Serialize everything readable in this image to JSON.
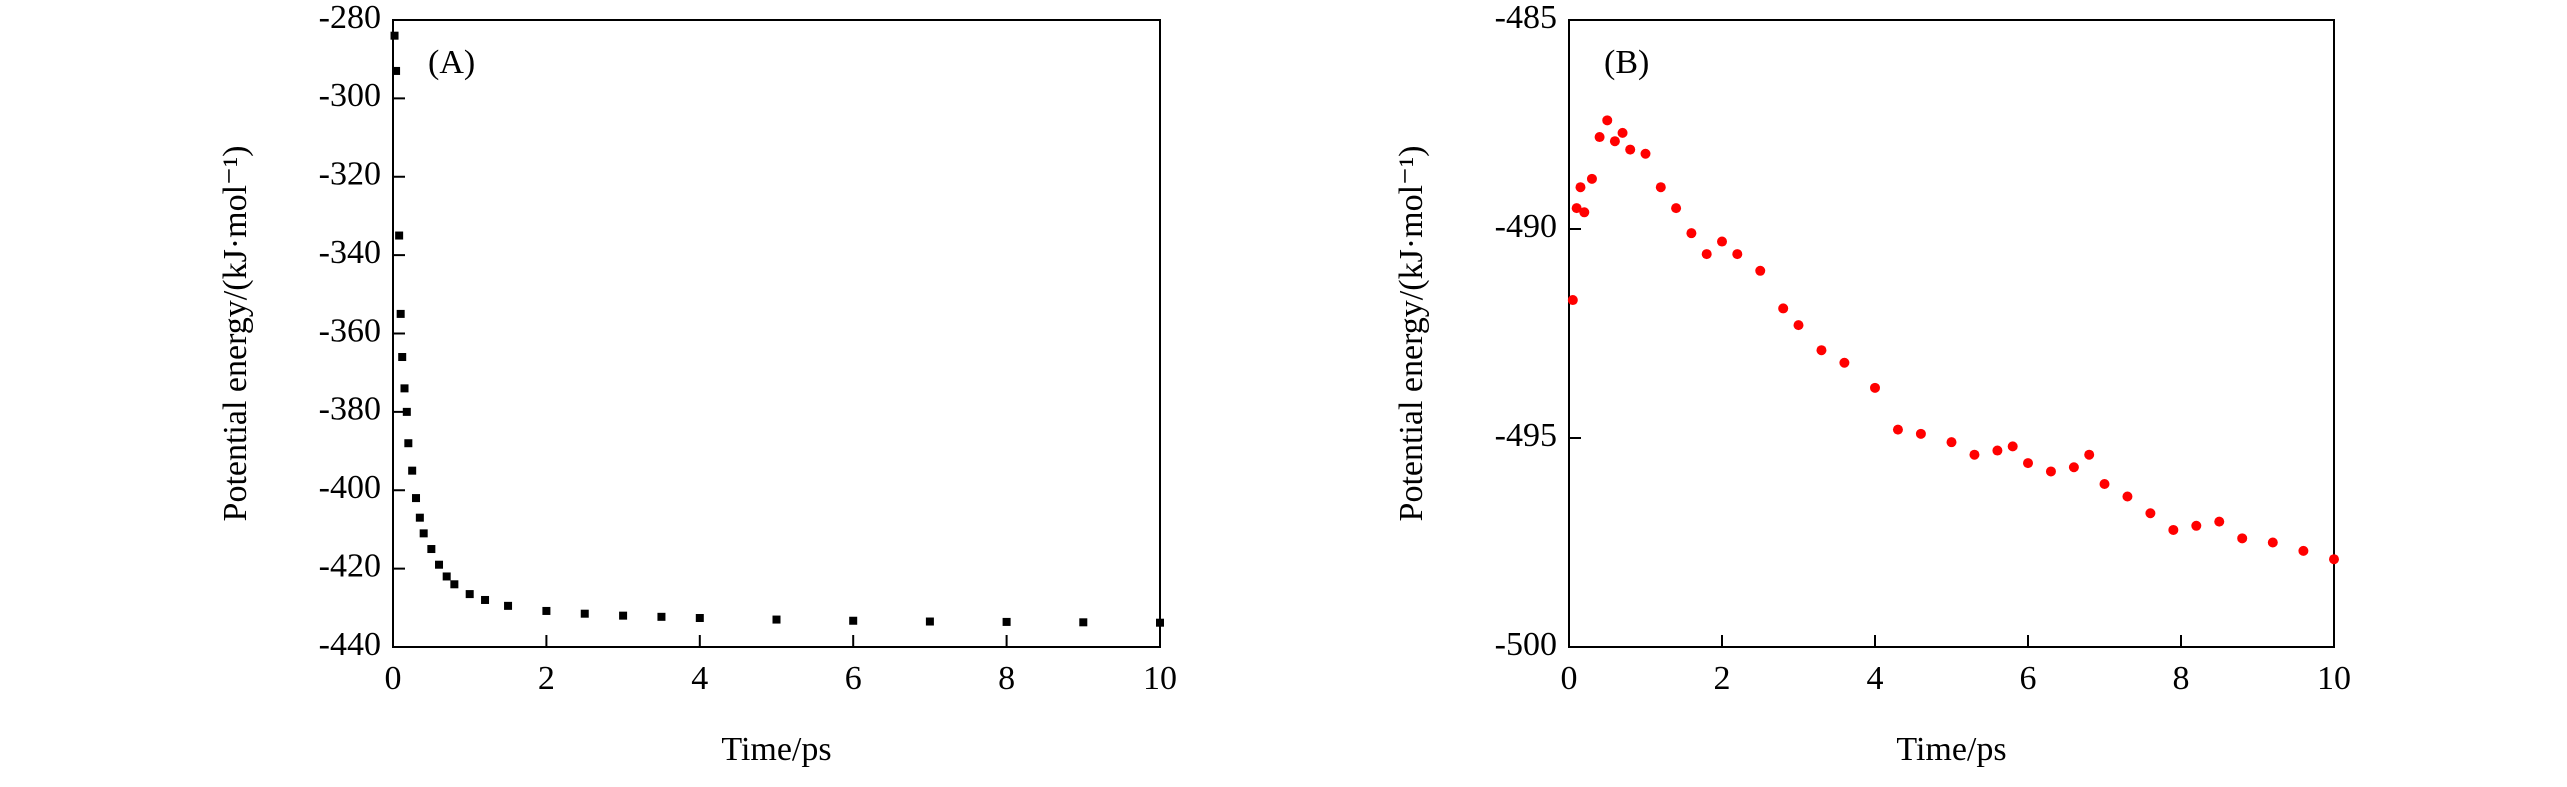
{
  "chart_data": [
    {
      "type": "scatter",
      "annotation": "(A)",
      "x_label": "Time/ps",
      "y_label": "Potential energy/(kJ·mol⁻¹)",
      "color": "#000000",
      "xlim": [
        0,
        10
      ],
      "xticks": [
        0,
        2,
        4,
        6,
        8,
        10
      ],
      "ylim": [
        -440,
        -280
      ],
      "yticks": [
        -440,
        -420,
        -400,
        -380,
        -360,
        -340,
        -320,
        -300,
        -280
      ],
      "x": [
        0.02,
        0.04,
        0.08,
        0.1,
        0.12,
        0.15,
        0.18,
        0.2,
        0.25,
        0.3,
        0.35,
        0.4,
        0.5,
        0.6,
        0.7,
        0.8,
        1.0,
        1.2,
        1.5,
        2.0,
        2.5,
        3.0,
        3.5,
        4.0,
        5.0,
        6.0,
        7.0,
        8.0,
        9.0,
        10.0
      ],
      "values": [
        -284,
        -293,
        -335,
        -355,
        -366,
        -374,
        -380,
        -388,
        -395,
        -402,
        -407,
        -411,
        -415,
        -419,
        -422,
        -424,
        -426.5,
        -428,
        -429.5,
        -430.8,
        -431.5,
        -432,
        -432.3,
        -432.6,
        -433,
        -433.3,
        -433.5,
        -433.6,
        -433.7,
        -433.8
      ]
    },
    {
      "type": "scatter",
      "annotation": "(B)",
      "x_label": "Time/ps",
      "y_label": "Potential energy/(kJ·mol⁻¹)",
      "color": "#ff0000",
      "xlim": [
        0,
        10
      ],
      "xticks": [
        0,
        2,
        4,
        6,
        8,
        10
      ],
      "ylim": [
        -500,
        -485
      ],
      "yticks": [
        -500,
        -495,
        -490,
        -485
      ],
      "x": [
        0.05,
        0.1,
        0.15,
        0.2,
        0.3,
        0.4,
        0.5,
        0.6,
        0.7,
        0.8,
        1.0,
        1.2,
        1.4,
        1.6,
        1.8,
        2.0,
        2.2,
        2.5,
        2.8,
        3.0,
        3.3,
        3.6,
        4.0,
        4.3,
        4.6,
        5.0,
        5.3,
        5.6,
        5.8,
        6.0,
        6.3,
        6.6,
        6.8,
        7.0,
        7.3,
        7.6,
        7.9,
        8.2,
        8.5,
        8.8,
        9.2,
        9.6,
        10.0
      ],
      "values": [
        -491.7,
        -489.5,
        -489,
        -489.6,
        -488.8,
        -487.8,
        -487.4,
        -487.9,
        -487.7,
        -488.1,
        -488.2,
        -489.0,
        -489.5,
        -490.1,
        -490.6,
        -490.3,
        -490.6,
        -491.0,
        -491.9,
        -492.3,
        -492.9,
        -493.2,
        -493.8,
        -494.8,
        -494.9,
        -495.1,
        -495.4,
        -495.3,
        -495.2,
        -495.6,
        -495.8,
        -495.7,
        -495.4,
        -496.1,
        -496.4,
        -496.8,
        -497.2,
        -497.1,
        -497.0,
        -497.4,
        -497.5,
        -497.7,
        -497.9
      ]
    }
  ]
}
